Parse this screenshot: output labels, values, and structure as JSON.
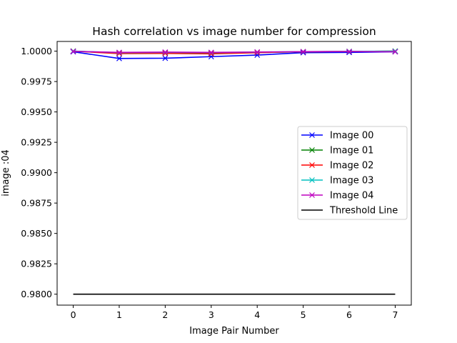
{
  "chart_data": {
    "type": "line",
    "title": "Hash correlation vs image number for compression",
    "xlabel": "Image Pair Number",
    "ylabel": "image :04",
    "xlim": [
      -0.35,
      7.35
    ],
    "ylim": [
      0.9791,
      1.0008
    ],
    "xticks": [
      0,
      1,
      2,
      3,
      4,
      5,
      6,
      7
    ],
    "yticks": [
      0.98,
      0.9825,
      0.985,
      0.9875,
      0.99,
      0.9925,
      0.995,
      0.9975,
      1.0
    ],
    "ytick_labels": [
      "0.9800",
      "0.9825",
      "0.9850",
      "0.9875",
      "0.9900",
      "0.9925",
      "0.9950",
      "0.9975",
      "1.0000"
    ],
    "grid": false,
    "legend_position": "center-right",
    "series": [
      {
        "name": "Image 00",
        "color": "#0000ff",
        "marker": "x",
        "x": [
          0,
          1,
          2,
          3,
          4,
          5,
          6,
          7
        ],
        "y": [
          0.99995,
          0.9994,
          0.99942,
          0.99955,
          0.99968,
          0.99988,
          0.9999,
          0.99995
        ]
      },
      {
        "name": "Image 01",
        "color": "#008000",
        "marker": "x",
        "x": [
          0,
          1,
          2,
          3,
          4,
          5,
          6,
          7
        ],
        "y": [
          1.0,
          0.99985,
          0.99988,
          0.99985,
          0.9999,
          0.99995,
          0.99997,
          1.0
        ]
      },
      {
        "name": "Image 02",
        "color": "#ff0000",
        "marker": "x",
        "x": [
          0,
          1,
          2,
          3,
          4,
          5,
          6,
          7
        ],
        "y": [
          1.0,
          0.9998,
          0.99982,
          0.99978,
          0.99988,
          0.99995,
          0.99997,
          1.0
        ]
      },
      {
        "name": "Image 03",
        "color": "#00bfbf",
        "marker": "x",
        "x": [
          0,
          1,
          2,
          3,
          4,
          5,
          6,
          7
        ],
        "y": [
          1.0,
          0.99988,
          0.9999,
          0.99988,
          0.99992,
          0.99996,
          0.99998,
          1.0
        ]
      },
      {
        "name": "Image 04",
        "color": "#bf00bf",
        "marker": "x",
        "x": [
          0,
          1,
          2,
          3,
          4,
          5,
          6,
          7
        ],
        "y": [
          0.99998,
          0.9999,
          0.99992,
          0.9999,
          0.99993,
          0.99996,
          0.99997,
          0.99995
        ]
      },
      {
        "name": "Threshold Line",
        "color": "#000000",
        "marker": "none",
        "x": [
          0,
          7
        ],
        "y": [
          0.98,
          0.98
        ]
      }
    ]
  }
}
